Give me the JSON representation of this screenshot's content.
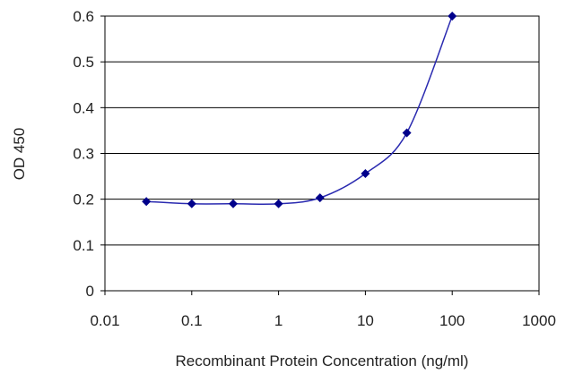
{
  "chart_data": {
    "type": "line",
    "title": "",
    "xlabel": "Recombinant Protein Concentration (ng/ml)",
    "ylabel": "OD 450",
    "x_scale": "log",
    "xlim": [
      0.01,
      1000
    ],
    "ylim": [
      0,
      0.6
    ],
    "x_ticks": [
      "0.01",
      "0.1",
      "1",
      "10",
      "100",
      "1000"
    ],
    "y_ticks": [
      "0",
      "0.1",
      "0.2",
      "0.3",
      "0.4",
      "0.5",
      "0.6"
    ],
    "grid": "horizontal",
    "legend": "none",
    "series": [
      {
        "color": "#00008b",
        "marker": "diamond",
        "x": [
          0.03,
          0.1,
          0.3,
          1,
          3,
          10,
          30,
          100
        ],
        "y": [
          0.195,
          0.19,
          0.19,
          0.19,
          0.203,
          0.256,
          0.345,
          0.6
        ]
      }
    ]
  }
}
